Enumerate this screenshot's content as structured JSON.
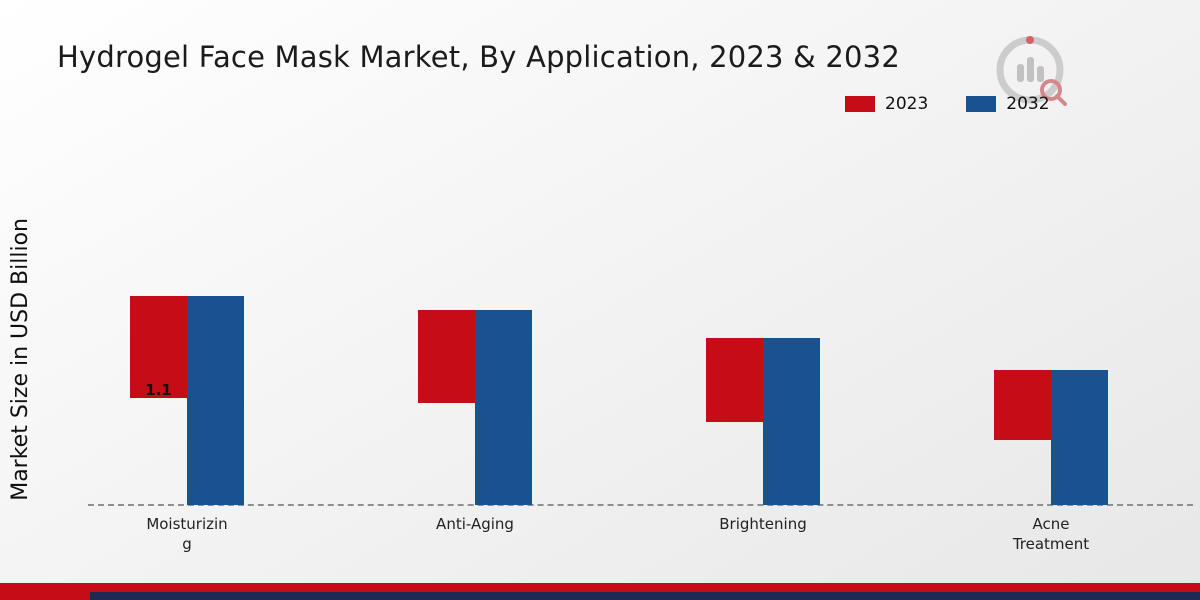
{
  "title": "Hydrogel Face Mask Market, By Application, 2023 & 2032",
  "ylabel": "Market Size in USD Billion",
  "legend": [
    {
      "label": "2023",
      "color": "#c60c17"
    },
    {
      "label": "2032",
      "color": "#1a5190"
    }
  ],
  "branding": {
    "logo": "market-research-future-logo",
    "footer_red_band_color": "#c60c17",
    "footer_navy_band_color": "#1e2a52"
  },
  "chart_data": {
    "type": "bar",
    "title": "Hydrogel Face Mask Market, By Application, 2023 & 2032",
    "ylabel": "Market Size in USD Billion",
    "unit": "USD Billion",
    "categories": [
      "Moisturizing",
      "Anti-Aging",
      "Brightening",
      "Acne Treatment"
    ],
    "category_label_lines": [
      [
        "Moisturizin",
        "g"
      ],
      [
        "Anti-Aging"
      ],
      [
        "Brightening"
      ],
      [
        "Acne",
        "Treatment"
      ]
    ],
    "series": [
      {
        "name": "2023",
        "color": "#c60c17",
        "values": [
          1.1,
          1.0,
          0.9,
          0.75
        ]
      },
      {
        "name": "2032",
        "color": "#1a5190",
        "values": [
          2.25,
          2.1,
          1.8,
          1.45
        ]
      }
    ],
    "annotations": [
      {
        "series": "2023",
        "category_index": 0,
        "text": "1.1"
      }
    ],
    "ylim": [
      0,
      2.5
    ],
    "grid": false,
    "baseline_style": "dashed",
    "legend_position": "top-right"
  }
}
